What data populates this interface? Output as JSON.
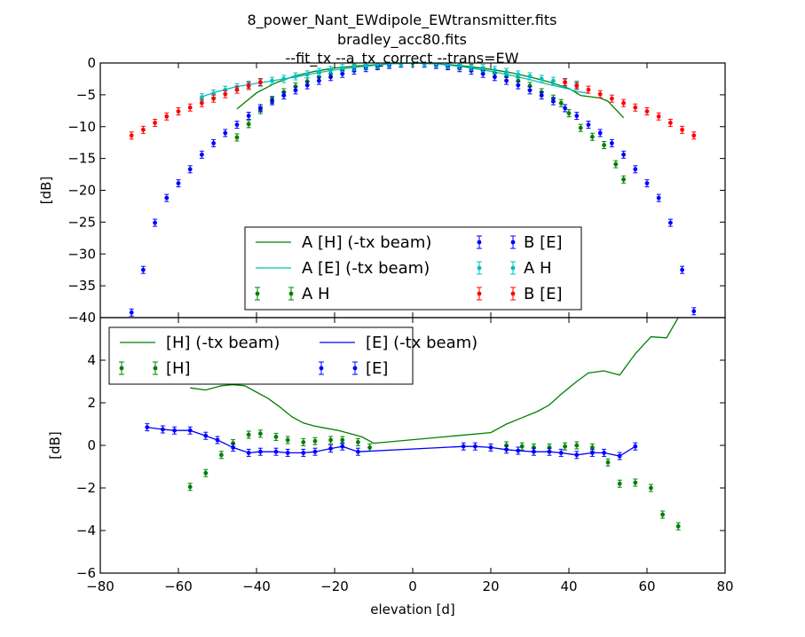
{
  "title_lines": [
    "8_power_Nant_EWdipole_EWtransmitter.fits",
    "bradley_acc80.fits",
    "--fit_tx --a_tx_correct --trans=EW"
  ],
  "chart_data": [
    {
      "type": "scatter",
      "ylabel": "[dB]",
      "xlim": [
        -80,
        80
      ],
      "ylim": [
        -40,
        0
      ],
      "xticks": [],
      "yticks": [
        -40,
        -35,
        -30,
        -25,
        -20,
        -15,
        -10,
        -5,
        0
      ],
      "legend_position": "lower center",
      "series": [
        {
          "name": "A [H] (-tx beam)",
          "kind": "line",
          "color": "#008000",
          "x": [
            -45,
            -40,
            -35,
            -30,
            -25,
            -20,
            -15,
            -10,
            -5,
            0,
            5,
            10,
            15,
            20,
            25,
            30,
            35,
            40,
            43,
            48,
            50,
            54
          ],
          "y": [
            -7.2,
            -4.7,
            -3.1,
            -2.0,
            -1.3,
            -0.8,
            -0.5,
            -0.3,
            -0.1,
            0,
            -0.1,
            -0.3,
            -0.6,
            -1.0,
            -1.5,
            -2.2,
            -3.0,
            -4.0,
            -5.1,
            -5.5,
            -6.0,
            -8.6
          ]
        },
        {
          "name": "A [E] (-tx beam)",
          "kind": "line",
          "color": "#00bfbf",
          "x": [
            -54,
            -50,
            -45,
            -40,
            -35,
            -30,
            -25,
            -20,
            -15,
            -10,
            -5,
            0,
            5,
            10,
            15,
            20,
            25,
            30,
            35,
            40,
            42,
            45
          ],
          "y": [
            -5.3,
            -4.5,
            -3.7,
            -3.2,
            -2.7,
            -2.2,
            -1.6,
            -1.1,
            -0.7,
            -0.4,
            -0.1,
            0,
            -0.1,
            -0.4,
            -0.8,
            -1.3,
            -1.9,
            -2.6,
            -3.4,
            -4.1,
            -4.5,
            -4.7
          ]
        },
        {
          "name": "A H",
          "kind": "errorbar",
          "color": "#008000",
          "x": [
            -45,
            -42,
            -39,
            -36,
            -33,
            -30,
            -27,
            -24,
            -21,
            -18,
            -15,
            -12,
            -9,
            9,
            12,
            15,
            18,
            21,
            24,
            27,
            30,
            33,
            36,
            38,
            40,
            43,
            46,
            49,
            52,
            54
          ],
          "y": [
            -11.7,
            -9.6,
            -7.4,
            -5.8,
            -4.6,
            -3.7,
            -2.9,
            -2.2,
            -1.7,
            -1.2,
            -0.8,
            -0.5,
            -0.3,
            -0.3,
            -0.5,
            -0.8,
            -1.2,
            -1.6,
            -2.1,
            -2.8,
            -3.6,
            -4.6,
            -5.6,
            -6.3,
            -7.9,
            -10.2,
            -11.6,
            -12.9,
            -15.9,
            -18.3
          ]
        },
        {
          "name": "B [E]",
          "kind": "errorbar",
          "color": "#0000ff",
          "x": [
            -72,
            -69,
            -66,
            -63,
            -60,
            -57,
            -54,
            -51,
            -48,
            -45,
            -42,
            -39,
            -36,
            -33,
            -30,
            -27,
            -24,
            -21,
            -18,
            -15,
            -12,
            -9,
            -6,
            -3,
            0,
            3,
            6,
            9,
            12,
            15,
            18,
            21,
            24,
            27,
            30,
            33,
            36,
            39,
            42,
            45,
            48,
            51,
            54,
            57,
            60,
            63,
            66,
            69,
            72
          ],
          "y": [
            -39.2,
            -32.5,
            -25.1,
            -21.2,
            -18.9,
            -16.7,
            -14.4,
            -12.6,
            -11.0,
            -9.7,
            -8.3,
            -7.1,
            -6.0,
            -5.1,
            -4.3,
            -3.5,
            -2.8,
            -2.2,
            -1.7,
            -1.2,
            -0.8,
            -0.5,
            -0.3,
            -0.1,
            0,
            -0.1,
            -0.3,
            -0.5,
            -0.8,
            -1.2,
            -1.7,
            -2.2,
            -2.8,
            -3.5,
            -4.3,
            -5.1,
            -6.0,
            -7.1,
            -8.3,
            -9.7,
            -11.0,
            -12.6,
            -14.4,
            -16.7,
            -18.9,
            -21.2,
            -25.1,
            -32.5,
            -39.0
          ]
        },
        {
          "name": "A H",
          "kind": "errorbar",
          "color": "#00bfbf",
          "x": [
            -54,
            -51,
            -48,
            -45,
            -42,
            -39,
            -36,
            -33,
            -30,
            -27,
            -24,
            -21,
            -18,
            -15,
            -12,
            -9,
            -6,
            -3,
            0,
            3,
            6,
            9,
            12,
            15,
            18,
            21,
            24,
            27,
            30,
            33,
            36,
            39,
            42
          ],
          "y": [
            -5.4,
            -4.8,
            -4.2,
            -3.8,
            -3.4,
            -3.1,
            -2.8,
            -2.5,
            -2.1,
            -1.8,
            -1.4,
            -1.1,
            -0.8,
            -0.6,
            -0.4,
            -0.2,
            -0.1,
            0,
            0,
            0,
            -0.1,
            -0.2,
            -0.4,
            -0.6,
            -0.8,
            -1.1,
            -1.4,
            -1.8,
            -2.1,
            -2.5,
            -2.8,
            -3.1,
            -3.4
          ]
        },
        {
          "name": "B [E]",
          "kind": "errorbar",
          "color": "#ff0000",
          "x": [
            -72,
            -69,
            -66,
            -63,
            -60,
            -57,
            -54,
            -51,
            -48,
            -45,
            -42,
            -39,
            39,
            42,
            45,
            48,
            51,
            54,
            57,
            60,
            63,
            66,
            69,
            72
          ],
          "y": [
            -11.4,
            -10.5,
            -9.4,
            -8.4,
            -7.6,
            -7.0,
            -6.3,
            -5.6,
            -4.9,
            -4.2,
            -3.6,
            -3.0,
            -3.0,
            -3.6,
            -4.2,
            -4.9,
            -5.6,
            -6.3,
            -7.0,
            -7.6,
            -8.4,
            -9.4,
            -10.5,
            -11.4
          ]
        }
      ]
    },
    {
      "type": "scatter",
      "xlabel": "elevation [d]",
      "ylabel": "[dB]",
      "xlim": [
        -80,
        80
      ],
      "ylim": [
        -6,
        6
      ],
      "xticks": [
        -80,
        -60,
        -40,
        -20,
        0,
        20,
        40,
        60,
        80
      ],
      "yticks": [
        -6,
        -4,
        -2,
        0,
        2,
        4
      ],
      "legend_position": "upper left",
      "series": [
        {
          "name": "[H] (-tx beam)",
          "kind": "line",
          "color": "#008000",
          "x": [
            -57,
            -53,
            -49,
            -46,
            -43,
            -40,
            -37,
            -34,
            -31,
            -28,
            -25,
            -22,
            -19,
            -16,
            -13,
            -10,
            20,
            24,
            28,
            32,
            35,
            38,
            42,
            45,
            49,
            53,
            57,
            61,
            65,
            68
          ],
          "y": [
            2.7,
            2.6,
            2.8,
            2.85,
            2.8,
            2.5,
            2.2,
            1.8,
            1.35,
            1.05,
            0.9,
            0.8,
            0.7,
            0.55,
            0.4,
            0.1,
            0.6,
            1.0,
            1.3,
            1.6,
            1.9,
            2.4,
            3.0,
            3.4,
            3.5,
            3.3,
            4.3,
            5.1,
            5.05,
            6.0
          ]
        },
        {
          "name": "[H]",
          "kind": "errorbar",
          "color": "#008000",
          "x": [
            -57,
            -53,
            -49,
            -46,
            -42,
            -39,
            -35,
            -32,
            -28,
            -25,
            -21,
            -18,
            -14,
            -11,
            24,
            28,
            31,
            35,
            39,
            42,
            46,
            50,
            53,
            57,
            61,
            64,
            68
          ],
          "y": [
            -1.95,
            -1.3,
            -0.45,
            0.1,
            0.5,
            0.55,
            0.4,
            0.25,
            0.15,
            0.2,
            0.25,
            0.25,
            0.15,
            -0.1,
            0.0,
            -0.05,
            -0.1,
            -0.1,
            -0.05,
            -0.0,
            -0.1,
            -0.8,
            -1.8,
            -1.75,
            -2.0,
            -3.25,
            -3.8
          ]
        },
        {
          "name": "[E] (-tx beam)",
          "kind": "line",
          "color": "#0000ff",
          "x": [
            -68,
            -64,
            -61,
            -57,
            -53,
            -50,
            -46,
            -42,
            -39,
            -35,
            -32,
            -28,
            -25,
            -21,
            -18,
            -14,
            13,
            16,
            20,
            24,
            27,
            31,
            35,
            38,
            42,
            46,
            49,
            53,
            57
          ],
          "y": [
            0.85,
            0.75,
            0.7,
            0.7,
            0.45,
            0.25,
            -0.1,
            -0.35,
            -0.3,
            -0.3,
            -0.35,
            -0.35,
            -0.3,
            -0.15,
            -0.05,
            -0.3,
            -0.05,
            -0.05,
            -0.1,
            -0.2,
            -0.25,
            -0.3,
            -0.3,
            -0.35,
            -0.45,
            -0.35,
            -0.35,
            -0.5,
            -0.05
          ]
        },
        {
          "name": "[E]",
          "kind": "errorbar",
          "color": "#0000ff",
          "x": [
            -68,
            -64,
            -61,
            -57,
            -53,
            -50,
            -46,
            -42,
            -39,
            -35,
            -32,
            -28,
            -25,
            -21,
            -18,
            -14,
            13,
            16,
            20,
            24,
            27,
            31,
            35,
            38,
            42,
            46,
            49,
            53,
            57
          ],
          "y": [
            0.85,
            0.75,
            0.7,
            0.7,
            0.45,
            0.25,
            -0.1,
            -0.35,
            -0.3,
            -0.3,
            -0.35,
            -0.35,
            -0.3,
            -0.15,
            -0.05,
            -0.3,
            -0.05,
            -0.05,
            -0.1,
            -0.2,
            -0.25,
            -0.3,
            -0.3,
            -0.35,
            -0.45,
            -0.35,
            -0.35,
            -0.5,
            -0.05
          ]
        }
      ]
    }
  ]
}
